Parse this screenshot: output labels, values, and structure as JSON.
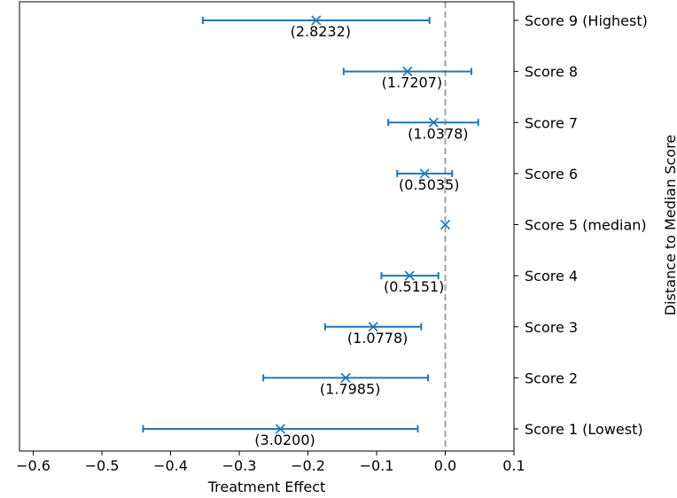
{
  "chart_data": {
    "type": "scatter",
    "subtype": "point estimates with error bars",
    "title": "",
    "xlabel": "Treatment Effect",
    "ylabel": "Distance to Median Score",
    "y_axis_side": "right",
    "xlim": [
      -0.62,
      0.1
    ],
    "x_ticks": [
      -0.6,
      -0.5,
      -0.4,
      -0.3,
      -0.2,
      -0.1,
      0.0,
      0.1
    ],
    "x_tick_labels": [
      "−0.6",
      "−0.5",
      "−0.4",
      "−0.3",
      "−0.2",
      "−0.1",
      "0.0",
      "0.1"
    ],
    "grid": false,
    "reference_line": {
      "x": 0.0,
      "style": "dashed",
      "color": "#a0a0a0"
    },
    "marker": "x",
    "color": "#1f77b4",
    "points": [
      {
        "category": "Score 1 (Lowest)",
        "estimate": -0.24,
        "ci_low": -0.44,
        "ci_high": -0.04,
        "label": "(3.0200)"
      },
      {
        "category": "Score 2",
        "estimate": -0.145,
        "ci_low": -0.265,
        "ci_high": -0.025,
        "label": "(1.7985)"
      },
      {
        "category": "Score 3",
        "estimate": -0.105,
        "ci_low": -0.175,
        "ci_high": -0.035,
        "label": "(1.0778)"
      },
      {
        "category": "Score 4",
        "estimate": -0.052,
        "ci_low": -0.093,
        "ci_high": -0.01,
        "label": "(0.5151)"
      },
      {
        "category": "Score 5 (median)",
        "estimate": 0.0,
        "ci_low": null,
        "ci_high": null,
        "label": ""
      },
      {
        "category": "Score 6",
        "estimate": -0.03,
        "ci_low": -0.07,
        "ci_high": 0.01,
        "label": "(0.5035)"
      },
      {
        "category": "Score 7",
        "estimate": -0.017,
        "ci_low": -0.083,
        "ci_high": 0.048,
        "label": "(1.0378)"
      },
      {
        "category": "Score 8",
        "estimate": -0.055,
        "ci_low": -0.148,
        "ci_high": 0.038,
        "label": "(1.7207)"
      },
      {
        "category": "Score 9 (Highest)",
        "estimate": -0.188,
        "ci_low": -0.353,
        "ci_high": -0.023,
        "label": "(2.8232)"
      }
    ]
  }
}
